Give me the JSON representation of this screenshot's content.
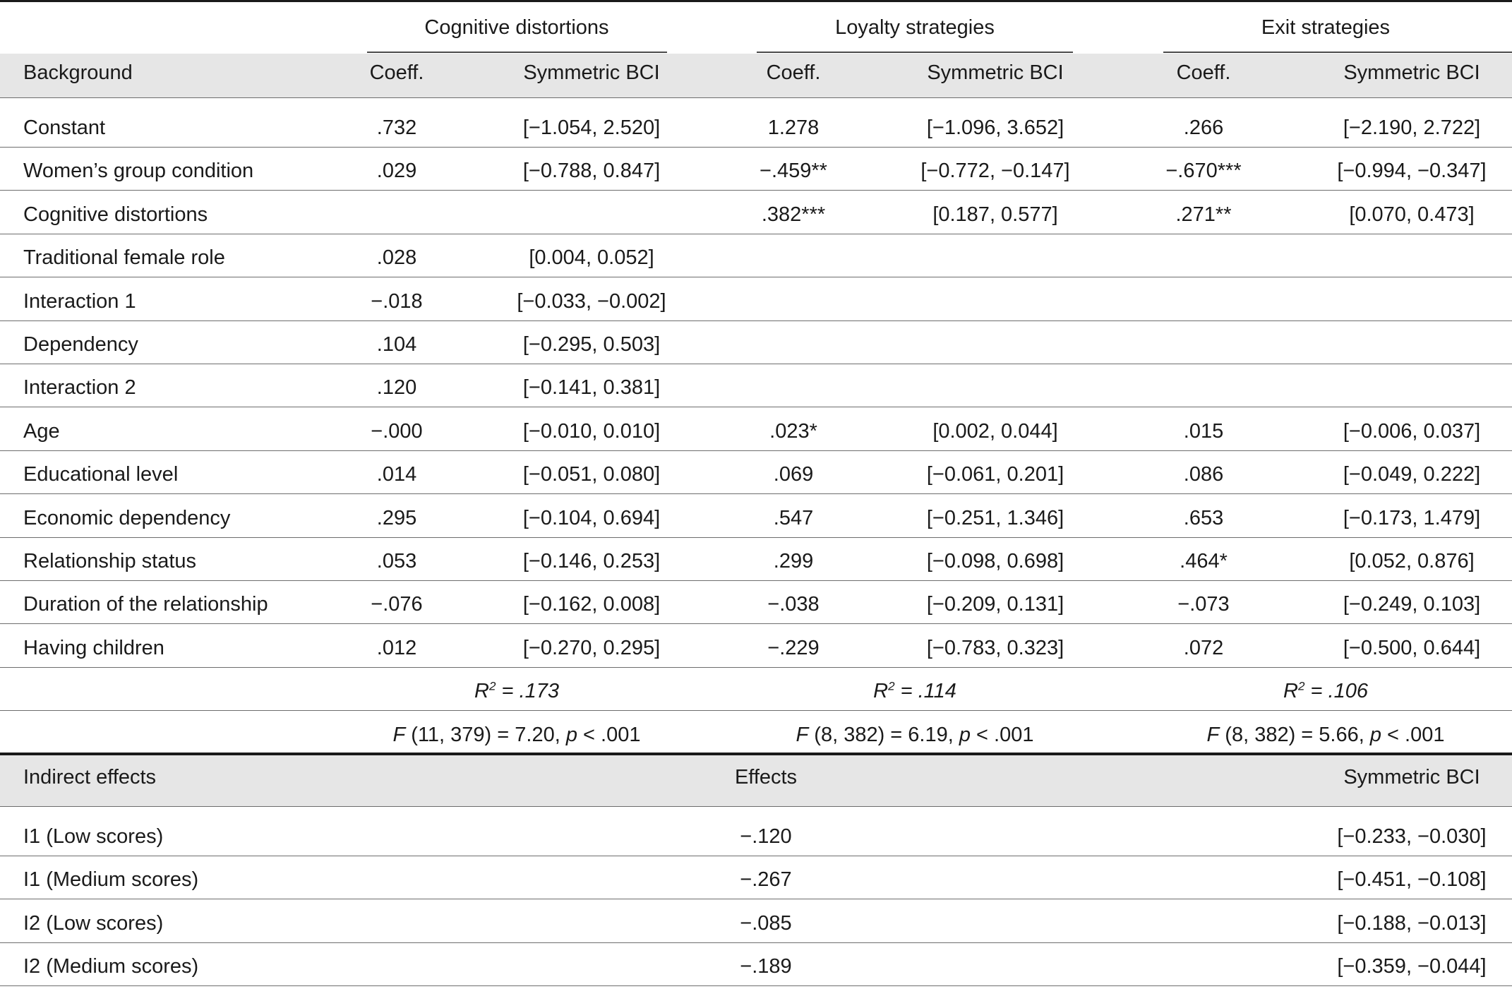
{
  "header": {
    "groups": [
      "Cognitive distortions",
      "Loyalty strategies",
      "Exit strategies"
    ],
    "row_label": "Background",
    "sub_coeff": "Coeff.",
    "sub_bci": "Symmetric BCI"
  },
  "rows": [
    {
      "label": "Constant",
      "cells": [
        ".732",
        "[−1.054, 2.520]",
        "1.278",
        "[−1.096, 3.652]",
        ".266",
        "[−2.190, 2.722]"
      ]
    },
    {
      "label": "Women’s group condition",
      "cells": [
        ".029",
        "[−0.788, 0.847]",
        "−.459**",
        "[−0.772, −0.147]",
        "−.670***",
        "[−0.994, −0.347]"
      ]
    },
    {
      "label": "Cognitive distortions",
      "cells": [
        "",
        "",
        ".382***",
        "[0.187, 0.577]",
        ".271**",
        "[0.070, 0.473]"
      ]
    },
    {
      "label": "Traditional female role",
      "cells": [
        ".028",
        "[0.004, 0.052]",
        "",
        "",
        "",
        ""
      ]
    },
    {
      "label": "Interaction 1",
      "cells": [
        "−.018",
        "[−0.033, −0.002]",
        "",
        "",
        "",
        ""
      ]
    },
    {
      "label": "Dependency",
      "cells": [
        ".104",
        "[−0.295, 0.503]",
        "",
        "",
        "",
        ""
      ]
    },
    {
      "label": "Interaction 2",
      "cells": [
        ".120",
        "[−0.141, 0.381]",
        "",
        "",
        "",
        ""
      ]
    },
    {
      "label": "Age",
      "cells": [
        "−.000",
        "[−0.010, 0.010]",
        ".023*",
        "[0.002, 0.044]",
        ".015",
        "[−0.006, 0.037]"
      ]
    },
    {
      "label": "Educational level",
      "cells": [
        ".014",
        "[−0.051, 0.080]",
        ".069",
        "[−0.061, 0.201]",
        ".086",
        "[−0.049, 0.222]"
      ]
    },
    {
      "label": "Economic dependency",
      "cells": [
        ".295",
        "[−0.104, 0.694]",
        ".547",
        "[−0.251, 1.346]",
        ".653",
        "[−0.173, 1.479]"
      ]
    },
    {
      "label": "Relationship status",
      "cells": [
        ".053",
        "[−0.146, 0.253]",
        ".299",
        "[−0.098, 0.698]",
        ".464*",
        "[0.052, 0.876]"
      ]
    },
    {
      "label": "Duration of the relationship",
      "cells": [
        "−.076",
        "[−0.162, 0.008]",
        "−.038",
        "[−0.209, 0.131]",
        "−.073",
        "[−0.249, 0.103]"
      ]
    },
    {
      "label": "Having children",
      "cells": [
        ".012",
        "[−0.270, 0.295]",
        "−.229",
        "[−0.783, 0.323]",
        ".072",
        "[−0.500, 0.644]"
      ]
    }
  ],
  "fit": {
    "r2_prefix": "R",
    "r2_sup": "2",
    "r2_values": [
      " = .173",
      " = .114",
      " = .106"
    ],
    "f_letter": "F",
    "f_df": [
      " (11, 379) = 7.20, ",
      " (8, 382) = 6.19, ",
      " (8, 382) = 5.66, "
    ],
    "p_letter": "p",
    "p_tail": " < .001"
  },
  "indirect": {
    "header_label": "Indirect effects",
    "header_effects": "Effects",
    "header_bci": "Symmetric BCI",
    "rows": [
      {
        "label": "I1 (Low scores)",
        "effect": "−.120",
        "bci": "[−0.233, −0.030]"
      },
      {
        "label": "I1 (Medium scores)",
        "effect": "−.267",
        "bci": "[−0.451, −0.108]"
      },
      {
        "label": "I2 (Low scores)",
        "effect": "−.085",
        "bci": "[−0.188, −0.013]"
      },
      {
        "label": "I2 (Medium scores)",
        "effect": "−.189",
        "bci": "[−0.359, −0.044]"
      }
    ]
  }
}
